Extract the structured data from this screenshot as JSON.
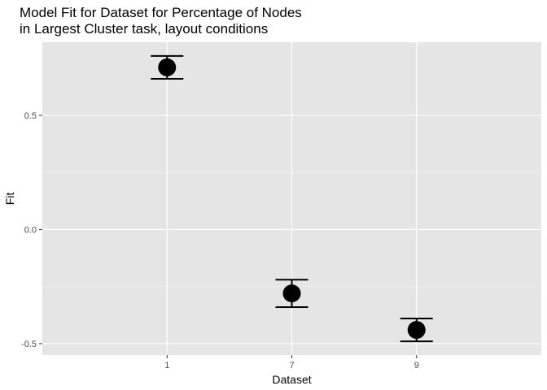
{
  "chart_data": {
    "type": "scatter",
    "title": "Model Fit for Dataset for Percentage of Nodes\nin Largest Cluster task, layout conditions",
    "xlabel": "Dataset",
    "ylabel": "Fit",
    "categories": [
      "1",
      "7",
      "9"
    ],
    "points": [
      {
        "x": "1",
        "y": 0.71,
        "ymin": 0.66,
        "ymax": 0.76
      },
      {
        "x": "7",
        "y": -0.28,
        "ymin": -0.34,
        "ymax": -0.22
      },
      {
        "x": "9",
        "y": -0.44,
        "ymin": -0.49,
        "ymax": -0.39
      }
    ],
    "ylim": [
      -0.55,
      0.82
    ],
    "yticks": [
      0.5,
      0.0,
      -0.5
    ],
    "ytick_labels": [
      "0.5",
      "0.0",
      "-0.5"
    ],
    "grid": true,
    "point_color": "#000000",
    "panel_color": "#e5e5e5"
  }
}
